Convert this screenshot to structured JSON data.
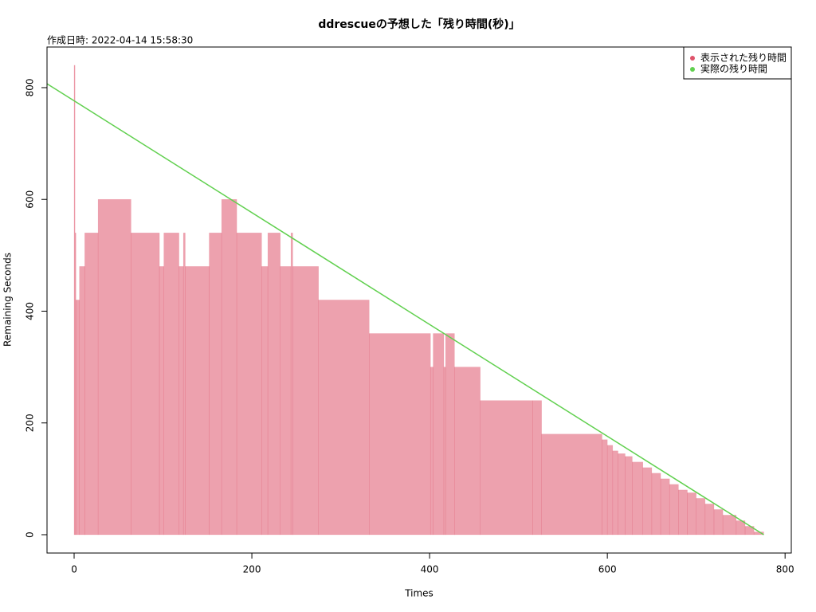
{
  "chart_data": {
    "type": "step",
    "title": "ddrescueの予想した「残り時間(秒)」",
    "subtitle": "作成日時: 2022-04-14 15:58:30",
    "xlabel": "Times",
    "ylabel": "Remaining Seconds",
    "xlim": [
      -30.5,
      807
    ],
    "ylim": [
      -32.8,
      872.7
    ],
    "xticks": [
      0,
      200,
      400,
      600,
      800
    ],
    "yticks": [
      0,
      200,
      400,
      600,
      800
    ],
    "legend": "topright",
    "series": [
      {
        "name": "表示された残り時間",
        "color": "#df536b",
        "type": "step",
        "bins": [
          0,
          1,
          2,
          6,
          12,
          27,
          64,
          96,
          101,
          118,
          123,
          125,
          152,
          166,
          183,
          211,
          218,
          232,
          244,
          246,
          275,
          332,
          401,
          404,
          416,
          418,
          428,
          457,
          516,
          526,
          594,
          600,
          606,
          612,
          620,
          628,
          640,
          650,
          660,
          670,
          680,
          690,
          700,
          710,
          720,
          730,
          745,
          755,
          765,
          776
        ],
        "values": [
          840,
          540,
          420,
          480,
          540,
          600,
          540,
          480,
          540,
          480,
          540,
          480,
          540,
          600,
          540,
          480,
          540,
          480,
          540,
          480,
          420,
          360,
          300,
          360,
          300,
          360,
          300,
          240,
          240,
          180,
          170,
          160,
          150,
          145,
          140,
          130,
          120,
          110,
          100,
          90,
          80,
          75,
          65,
          55,
          45,
          35,
          25,
          15,
          5
        ]
      },
      {
        "name": "実際の残り時間",
        "color": "#61d04f",
        "type": "line",
        "x": [
          -30.5,
          776
        ],
        "values": [
          807,
          0
        ]
      }
    ]
  }
}
